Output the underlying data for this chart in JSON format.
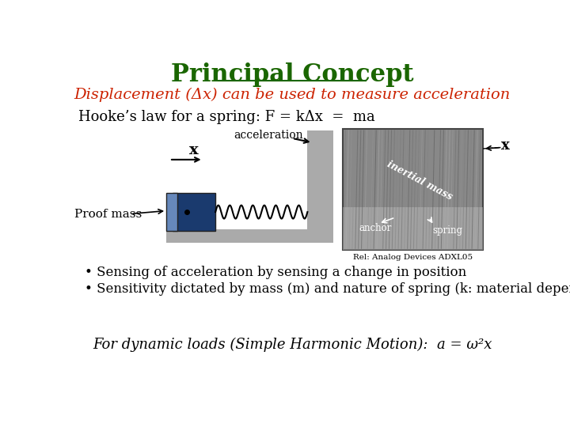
{
  "title": "Principal Concept",
  "subtitle": "Displacement (Δx) can be used to measure acceleration",
  "hookes_law": "Hooke’s law for a spring: F = kΔx  =  ma",
  "bullet1": "• Sensing of acceleration by sensing a change in position",
  "bullet2": "• Sensitivity dictated by mass (m) and nature of spring (k: material dependent)",
  "footer": "For dynamic loads (Simple Harmonic Motion):  a = ω²x",
  "ref": "Rel: Analog Devices ADXL05",
  "bg_color": "#ffffff",
  "title_color": "#1a6600",
  "subtitle_color": "#cc2200",
  "text_color": "#000000",
  "block_dark_blue": "#1a3a6e",
  "block_light_blue": "#6688bb",
  "block_gray": "#aaaaaa",
  "block_dark_gray": "#888888"
}
